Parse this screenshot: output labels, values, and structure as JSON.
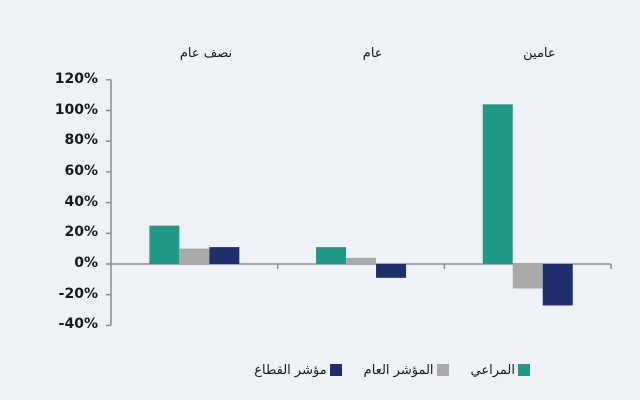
{
  "chart_data": {
    "type": "bar",
    "title": "",
    "categories": [
      "نصف عام",
      "عام",
      "عامين"
    ],
    "series": [
      {
        "name": "المراعي",
        "color": "#1f9a86",
        "values": [
          25,
          11,
          104
        ]
      },
      {
        "name": "المؤشر العام",
        "color": "#a9a9a9",
        "values": [
          10,
          4,
          -16
        ]
      },
      {
        "name": "مؤشر القطاع",
        "color": "#1f2f6b",
        "values": [
          11,
          -9,
          -27
        ]
      }
    ],
    "xlabel": "",
    "ylabel": "",
    "ylim": [
      -40,
      120
    ],
    "yticks": [
      "120%",
      "100%",
      "80%",
      "60%",
      "40%",
      "20%",
      "0%",
      "-20%",
      "-40%"
    ],
    "ytick_values": [
      120,
      100,
      80,
      60,
      40,
      20,
      0,
      -20,
      -40
    ],
    "category_labels_position": "top",
    "grid": false,
    "legend_position": "bottom"
  },
  "legend": [
    {
      "label": "المراعي",
      "color": "#1f9a86"
    },
    {
      "label": "المؤشر العام",
      "color": "#a9a9a9"
    },
    {
      "label": "مؤشر القطاع",
      "color": "#1f2f6b"
    }
  ]
}
